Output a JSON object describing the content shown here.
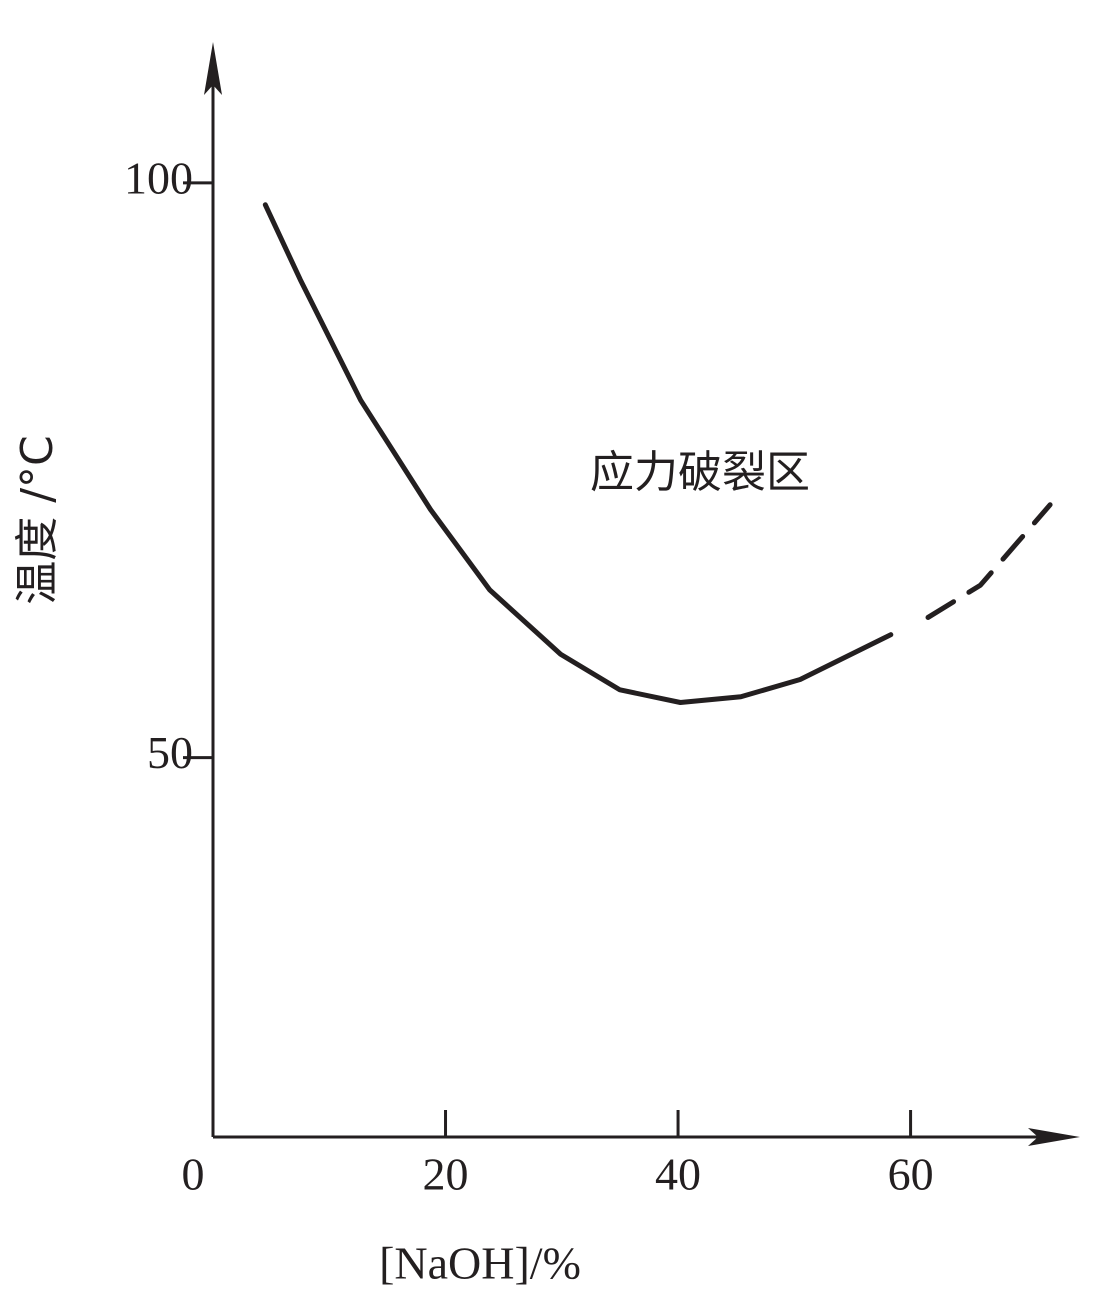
{
  "chart_data": {
    "type": "line",
    "xlabel": "[NaOH]/%",
    "ylabel": "温度 /°C",
    "annotation": "应力破裂区",
    "xlim": [
      0,
      74.4
    ],
    "ylim": [
      17,
      112
    ],
    "xticks": [
      0,
      20,
      40,
      60
    ],
    "yticks": [
      50,
      100
    ],
    "color": "#231f20",
    "series": [
      {
        "x": [
          4.5,
          7.5,
          12.7,
          18.7,
          23.8,
          29.9,
          35.0,
          40.2,
          45.4,
          50.5,
          58.3
        ],
        "values": [
          98.1,
          91.6,
          81.1,
          71.6,
          64.6,
          59.0,
          55.9,
          54.8,
          55.3,
          56.8,
          60.7
        ],
        "dashed": false
      },
      {
        "x": [
          61.5,
          66.0,
          72.0
        ],
        "values": [
          62.2,
          65.0,
          72.0
        ],
        "dashed": true
      }
    ]
  }
}
